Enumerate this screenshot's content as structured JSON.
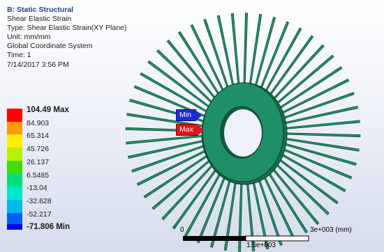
{
  "info": {
    "title": "B: Static Structural",
    "lines": [
      "Shear Elastic Strain",
      "Type: Shear Elastic Strain(XY Plane)",
      "Unit: mm/mm",
      "Global Coordinate System",
      "Time: 1",
      "7/14/2017 3:56 PM"
    ]
  },
  "legend": {
    "entries": [
      {
        "label": "104.49 Max",
        "color": "#ff0000"
      },
      {
        "label": "84.903",
        "color": "#ff9a00"
      },
      {
        "label": "65.314",
        "color": "#ffee00"
      },
      {
        "label": "45.726",
        "color": "#b8ee00"
      },
      {
        "label": "26.137",
        "color": "#3fdd00"
      },
      {
        "label": "6.5485",
        "color": "#00e07a"
      },
      {
        "label": "-13.04",
        "color": "#00e6c8"
      },
      {
        "label": "-32.628",
        "color": "#00b8ee"
      },
      {
        "label": "-52.217",
        "color": "#0060f0"
      },
      {
        "label": "-71.806 Min",
        "color": "#0008e6"
      }
    ]
  },
  "probes": {
    "min_label": "Min",
    "max_label": "Max"
  },
  "scale": {
    "zero": "0",
    "max": "3e+003 (mm)",
    "mid": "1.5e+003"
  },
  "colors": {
    "part_fill": "#1f8f68",
    "part_dark": "#0f5a40",
    "part_edge": "#0a3a28"
  }
}
